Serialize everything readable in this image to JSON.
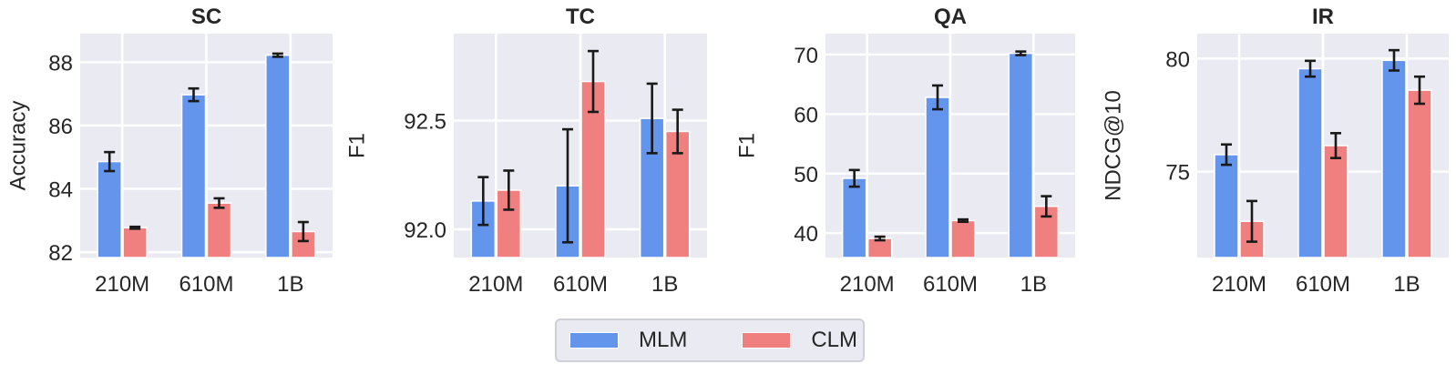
{
  "legend": {
    "items": [
      {
        "label": "MLM",
        "color": "#6495ED"
      },
      {
        "label": "CLM",
        "color": "#F08080"
      }
    ]
  },
  "chart_data": [
    {
      "type": "bar",
      "title": "SC",
      "xlabel": "",
      "ylabel": "Accuracy",
      "categories": [
        "210M",
        "610M",
        "1B"
      ],
      "ylim": [
        81.83,
        88.9
      ],
      "yticks": [
        82,
        84,
        86,
        88
      ],
      "ytick_labels": [
        "82",
        "84",
        "86",
        "88"
      ],
      "series": [
        {
          "name": "MLM",
          "values": [
            84.86,
            86.97,
            88.22
          ],
          "errors": [
            0.3,
            0.2,
            0.05
          ]
        },
        {
          "name": "CLM",
          "values": [
            82.77,
            83.55,
            82.65
          ],
          "errors": [
            0.03,
            0.15,
            0.3
          ]
        }
      ],
      "grid": true,
      "legend_position": "bottom-center"
    },
    {
      "type": "bar",
      "title": "TC",
      "xlabel": "",
      "ylabel": "F1",
      "categories": [
        "210M",
        "610M",
        "1B"
      ],
      "ylim": [
        91.87,
        92.9
      ],
      "yticks": [
        92.0,
        92.5
      ],
      "ytick_labels": [
        "92.0",
        "92.5"
      ],
      "series": [
        {
          "name": "MLM",
          "values": [
            92.13,
            92.2,
            92.51
          ],
          "errors": [
            0.11,
            0.26,
            0.16
          ]
        },
        {
          "name": "CLM",
          "values": [
            92.18,
            92.68,
            92.45
          ],
          "errors": [
            0.09,
            0.14,
            0.1
          ]
        }
      ],
      "grid": true,
      "legend_position": "bottom-center"
    },
    {
      "type": "bar",
      "title": "QA",
      "xlabel": "",
      "ylabel": "F1",
      "categories": [
        "210M",
        "610M",
        "1B"
      ],
      "ylim": [
        35.9,
        73.5
      ],
      "yticks": [
        40,
        50,
        60,
        70
      ],
      "ytick_labels": [
        "40",
        "50",
        "60",
        "70"
      ],
      "series": [
        {
          "name": "MLM",
          "values": [
            49.2,
            62.8,
            70.2
          ],
          "errors": [
            1.4,
            2.0,
            0.3
          ]
        },
        {
          "name": "CLM",
          "values": [
            39.1,
            42.1,
            44.5
          ],
          "errors": [
            0.3,
            0.2,
            1.7
          ]
        }
      ],
      "grid": true,
      "legend_position": "bottom-center"
    },
    {
      "type": "bar",
      "title": "IR",
      "xlabel": "",
      "ylabel": "NDCG@10",
      "categories": [
        "210M",
        "610M",
        "1B"
      ],
      "ylim": [
        71.2,
        81.1
      ],
      "yticks": [
        75,
        80
      ],
      "ytick_labels": [
        "75",
        "80"
      ],
      "series": [
        {
          "name": "MLM",
          "values": [
            75.75,
            79.55,
            79.92
          ],
          "errors": [
            0.45,
            0.35,
            0.45
          ]
        },
        {
          "name": "CLM",
          "values": [
            72.8,
            76.15,
            78.6
          ],
          "errors": [
            0.9,
            0.55,
            0.6
          ]
        }
      ],
      "grid": true,
      "legend_position": "bottom-center"
    }
  ]
}
